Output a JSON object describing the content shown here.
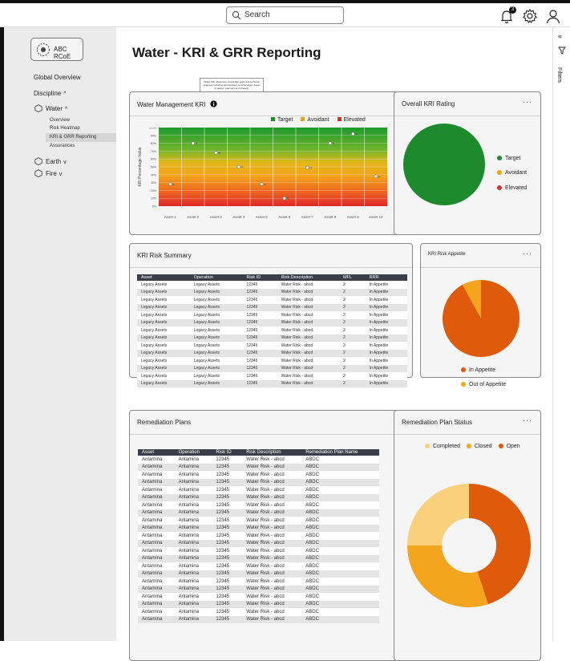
{
  "topnav": {
    "search_placeholder": "Search",
    "notification_count": "3"
  },
  "sidebar": {
    "org_name": "ABC RCoE",
    "global_overview": "Global Overview",
    "discipline": "Discipline",
    "disciplines": [
      {
        "label": "Water",
        "expanded": true
      },
      {
        "label": "Earth",
        "expanded": false
      },
      {
        "label": "Fire",
        "expanded": false
      }
    ],
    "water_items": [
      "Overview",
      "Risk Heatmap",
      "KRI & GRR Reporting",
      "Assurances"
    ]
  },
  "page": {
    "title": "Water - KRI & GRR Reporting"
  },
  "filters_label": "Filters",
  "water_kri": {
    "title": "Water Management KRI",
    "tooltip": "Water KRI: Measures knowledge gaps and technical analyses including appropriately sized analytic, future or design, planning and strategy.",
    "legend": [
      {
        "label": "Target",
        "color": "#1e8a2e"
      },
      {
        "label": "Avoidant",
        "color": "#f0a500"
      },
      {
        "label": "Elevated",
        "color": "#d9322b"
      }
    ]
  },
  "overall_kri": {
    "title": "Overall KRI Rating",
    "legend": [
      {
        "label": "Target",
        "color": "#1e8a2e"
      },
      {
        "label": "Avoidant",
        "color": "#f0a500"
      },
      {
        "label": "Elevated",
        "color": "#d9322b"
      }
    ]
  },
  "kri_risk_summary": {
    "title": "KRI Risk Summary",
    "columns": [
      "Asset",
      "Operation",
      "Risk ID",
      "Risk Description",
      "MFL",
      "RRR"
    ],
    "rows": [
      [
        "Legacy Assets",
        "Legacy Assets",
        "12345",
        "Water Risk - abcd",
        "2",
        "In Appetite"
      ],
      [
        "Legacy Assets",
        "Legacy Assets",
        "12345",
        "Water Risk - abcd",
        "2",
        "In Appetite"
      ],
      [
        "Legacy Assets",
        "Legacy Assets",
        "12345",
        "Water Risk - abcd",
        "2",
        "In Appetite"
      ],
      [
        "Legacy Assets",
        "Legacy Assets",
        "12345",
        "Water Risk - abcd",
        "2",
        "In Appetite"
      ],
      [
        "Legacy Assets",
        "Legacy Assets",
        "12345",
        "Water Risk - abcd",
        "2",
        "In Appetite"
      ],
      [
        "Legacy Assets",
        "Legacy Assets",
        "12345",
        "Water Risk - abcd",
        "2",
        "In Appetite"
      ],
      [
        "Legacy Assets",
        "Legacy Assets",
        "12345",
        "Water Risk - abcd",
        "2",
        "In Appetite"
      ],
      [
        "Legacy Assets",
        "Legacy Assets",
        "12345",
        "Water Risk - abcd",
        "2",
        "In Appetite"
      ],
      [
        "Legacy Assets",
        "Legacy Assets",
        "12345",
        "Water Risk - abcd",
        "2",
        "In Appetite"
      ],
      [
        "Legacy Assets",
        "Legacy Assets",
        "12345",
        "Water Risk - abcd",
        "2",
        "In Appetite"
      ],
      [
        "Legacy Assets",
        "Legacy Assets",
        "12345",
        "Water Risk - abcd",
        "2",
        "In Appetite"
      ],
      [
        "Legacy Assets",
        "Legacy Assets",
        "12345",
        "Water Risk - abcd",
        "2",
        "In Appetite"
      ],
      [
        "Legacy Assets",
        "Legacy Assets",
        "12345",
        "Water Risk - abcd",
        "2",
        "In Appetite"
      ],
      [
        "Legacy Assets",
        "Legacy Assets",
        "12345",
        "Water Risk - abcd",
        "2",
        "In Appetite"
      ]
    ]
  },
  "kri_risk_appetite": {
    "title": "KRI Risk Appetite",
    "legend": [
      {
        "label": "In Appetite",
        "color": "#e05a0c"
      },
      {
        "label": "Out of Appetite",
        "color": "#f5a41d"
      }
    ]
  },
  "remediation_plans": {
    "title": "Remediation Plans",
    "columns": [
      "Asset",
      "Operation",
      "Risk ID",
      "Risk Description",
      "Remediation Plan Name"
    ],
    "rows": [
      [
        "Antamina",
        "Antamina",
        "12345",
        "Water Risk - abcd",
        "ABDC"
      ],
      [
        "Antamina",
        "Antamina",
        "12345",
        "Water Risk - abcd",
        "ABDC"
      ],
      [
        "Antamina",
        "Antamina",
        "12345",
        "Water Risk - abcd",
        "ABDC"
      ],
      [
        "Antamina",
        "Antamina",
        "12345",
        "Water Risk - abcd",
        "ABDC"
      ],
      [
        "Antamina",
        "Antamina",
        "12345",
        "Water Risk - abcd",
        "ABDC"
      ],
      [
        "Antamina",
        "Antamina",
        "12345",
        "Water Risk - abcd",
        "ABDC"
      ],
      [
        "Antamina",
        "Antamina",
        "12345",
        "Water Risk - abcd",
        "ABDC"
      ],
      [
        "Antamina",
        "Antamina",
        "12345",
        "Water Risk - abcd",
        "ABDC"
      ],
      [
        "Antamina",
        "Antamina",
        "12345",
        "Water Risk - abcd",
        "ABDC"
      ],
      [
        "Antamina",
        "Antamina",
        "12345",
        "Water Risk - abcd",
        "ABDC"
      ],
      [
        "Antamina",
        "Antamina",
        "12345",
        "Water Risk - abcd",
        "ABDC"
      ],
      [
        "Antamina",
        "Antamina",
        "12345",
        "Water Risk - abcd",
        "ABDC"
      ],
      [
        "Antamina",
        "Antamina",
        "12345",
        "Water Risk - abcd",
        "ABDC"
      ],
      [
        "Antamina",
        "Antamina",
        "12345",
        "Water Risk - abcd",
        "ABDC"
      ],
      [
        "Antamina",
        "Antamina",
        "12345",
        "Water Risk - abcd",
        "ABDC"
      ],
      [
        "Antamina",
        "Antamina",
        "12345",
        "Water Risk - abcd",
        "ABDC"
      ],
      [
        "Antamina",
        "Antamina",
        "12345",
        "Water Risk - abcd",
        "ABDC"
      ],
      [
        "Antamina",
        "Antamina",
        "12345",
        "Water Risk - abcd",
        "ABDC"
      ],
      [
        "Antamina",
        "Antamina",
        "12345",
        "Water Risk - abcd",
        "ABDC"
      ],
      [
        "Antamina",
        "Antamina",
        "12345",
        "Water Risk - abcd",
        "ABDC"
      ],
      [
        "Antamina",
        "Antamina",
        "12345",
        "Water Risk - abcd",
        "ABDC"
      ],
      [
        "Antamina",
        "Antamina",
        "12345",
        "Water Risk - abcd",
        "ABDC"
      ]
    ]
  },
  "remediation_status": {
    "title": "Remediation Plan Status",
    "legend": [
      {
        "label": "Completed",
        "color": "#fbd07c"
      },
      {
        "label": "Closed",
        "color": "#f5a41d"
      },
      {
        "label": "Open",
        "color": "#e05a0c"
      }
    ]
  },
  "chart_data": [
    {
      "type": "scatter",
      "title": "Water Management KRI",
      "ylabel": "KRI Percentage Value",
      "xlabel": "",
      "categories": [
        "Asset 1",
        "Asset 2",
        "Asset 3",
        "Asset 4",
        "Asset 5",
        "Asset 6",
        "Asset 7",
        "Asset 8",
        "Asset 9",
        "Asset 12"
      ],
      "yticks": [
        "100%",
        "90%",
        "80%",
        "70%",
        "60%",
        "50%",
        "40%",
        "30%",
        "20%",
        "10%",
        "0%"
      ],
      "ylim": [
        0,
        100
      ],
      "values": [
        28,
        80,
        68,
        50,
        28,
        10,
        49,
        80,
        92,
        38
      ],
      "point_labels": [
        "xx",
        "xx",
        "xx",
        "xx",
        "xx",
        "xx",
        "xx",
        "xx",
        "xx",
        "xx"
      ],
      "background_bands": "green (top) to orange to red (bottom) gradient"
    },
    {
      "type": "pie",
      "title": "Overall KRI Rating",
      "slices": [
        {
          "label": "Target",
          "value": 100
        },
        {
          "label": "Avoidant",
          "value": 0
        },
        {
          "label": "Elevated",
          "value": 0
        }
      ]
    },
    {
      "type": "pie",
      "title": "KRI Risk Appetite",
      "slices": [
        {
          "label": "In Appetite",
          "value": 92
        },
        {
          "label": "Out of Appetite",
          "value": 8
        }
      ]
    },
    {
      "type": "pie",
      "title": "Remediation Plan Status",
      "donut": true,
      "slices": [
        {
          "label": "Open",
          "value": 45
        },
        {
          "label": "Closed",
          "value": 30
        },
        {
          "label": "Completed",
          "value": 25
        }
      ]
    }
  ]
}
